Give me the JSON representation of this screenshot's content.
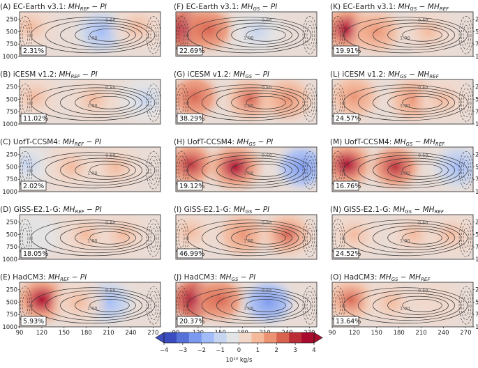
{
  "chart_data": {
    "type": "heatmap",
    "description_units": "10^10 kg/s",
    "panels": [
      {
        "title_prefix": "(A) EC-Earth v3.1: ",
        "title_math": "MH_REF − PI",
        "badge": "2.31%",
        "column": 0,
        "row": 0,
        "blobs": [
          {
            "lon": 105,
            "p": 400,
            "v": 1.2
          },
          {
            "lon": 200,
            "p": 500,
            "v": -1.5
          },
          {
            "lon": 250,
            "p": 400,
            "v": 0.8
          }
        ]
      },
      {
        "title_prefix": "(F) EC-Earth v3.1: ",
        "title_math": "MH_GS − PI",
        "badge": "22.69%",
        "column": 1,
        "row": 0,
        "blobs": [
          {
            "lon": 105,
            "p": 450,
            "v": 4
          },
          {
            "lon": 135,
            "p": 450,
            "v": 2.5
          },
          {
            "lon": 200,
            "p": 500,
            "v": -1.2
          }
        ]
      },
      {
        "title_prefix": "(K) EC-Earth v3.1: ",
        "title_math": "MH_GS − MH_REF",
        "badge": "19.91%",
        "column": 2,
        "row": 0,
        "blobs": [
          {
            "lon": 110,
            "p": 450,
            "v": 3.5
          },
          {
            "lon": 150,
            "p": 500,
            "v": 1.5
          },
          {
            "lon": 220,
            "p": 500,
            "v": 0.8
          }
        ]
      },
      {
        "title_prefix": "(B) iCESM v1.2: ",
        "title_math": "MH_REF − PI",
        "badge": "11.02%",
        "column": 0,
        "row": 1,
        "blobs": [
          {
            "lon": 110,
            "p": 450,
            "v": 1.2
          },
          {
            "lon": 190,
            "p": 500,
            "v": 1.0
          },
          {
            "lon": 260,
            "p": 500,
            "v": -0.8
          }
        ]
      },
      {
        "title_prefix": "(G) iCESM v1.2: ",
        "title_math": "MH_GS − PI",
        "badge": "38.29%",
        "column": 1,
        "row": 1,
        "blobs": [
          {
            "lon": 115,
            "p": 450,
            "v": 2.5
          },
          {
            "lon": 190,
            "p": 500,
            "v": 2.0
          },
          {
            "lon": 240,
            "p": 500,
            "v": 1.5
          }
        ]
      },
      {
        "title_prefix": "(L) iCESM v1.2: ",
        "title_math": "MH_GS − MH_REF",
        "badge": "24.57%",
        "column": 2,
        "row": 1,
        "blobs": [
          {
            "lon": 120,
            "p": 450,
            "v": 1.5
          },
          {
            "lon": 200,
            "p": 500,
            "v": 1.8
          },
          {
            "lon": 240,
            "p": 500,
            "v": 1.0
          }
        ]
      },
      {
        "title_prefix": "(C) UofT-CCSM4: ",
        "title_math": "MH_REF − PI",
        "badge": "2.02%",
        "column": 0,
        "row": 2,
        "blobs": [
          {
            "lon": 100,
            "p": 450,
            "v": -1.0
          },
          {
            "lon": 160,
            "p": 500,
            "v": 0.8
          },
          {
            "lon": 220,
            "p": 500,
            "v": 1.0
          }
        ]
      },
      {
        "title_prefix": "(H) UofT-CCSM4: ",
        "title_math": "MH_GS − PI",
        "badge": "19.12%",
        "column": 1,
        "row": 2,
        "blobs": [
          {
            "lon": 110,
            "p": 450,
            "v": 3.2
          },
          {
            "lon": 170,
            "p": 500,
            "v": 3.5
          },
          {
            "lon": 260,
            "p": 500,
            "v": -2.5
          }
        ]
      },
      {
        "title_prefix": "(M) UofT-CCSM4: ",
        "title_math": "MH_GS − MH_REF",
        "badge": "16.76%",
        "column": 2,
        "row": 2,
        "blobs": [
          {
            "lon": 110,
            "p": 450,
            "v": 3.5
          },
          {
            "lon": 175,
            "p": 500,
            "v": 3.0
          },
          {
            "lon": 260,
            "p": 500,
            "v": -1.5
          }
        ]
      },
      {
        "title_prefix": "(D) GISS-E2.1-G: ",
        "title_math": "MH_REF − PI",
        "badge": "18.05%",
        "column": 0,
        "row": 3,
        "blobs": [
          {
            "lon": 110,
            "p": 500,
            "v": -0.6
          },
          {
            "lon": 180,
            "p": 500,
            "v": 0.8
          },
          {
            "lon": 230,
            "p": 500,
            "v": 0.9
          }
        ]
      },
      {
        "title_prefix": "(I) GISS-E2.1-G: ",
        "title_math": "MH_GS − PI",
        "badge": "46.99%",
        "column": 1,
        "row": 3,
        "blobs": [
          {
            "lon": 110,
            "p": 450,
            "v": 1.0
          },
          {
            "lon": 180,
            "p": 500,
            "v": 1.8
          },
          {
            "lon": 240,
            "p": 500,
            "v": 2.0
          }
        ]
      },
      {
        "title_prefix": "(N) GISS-E2.1-G: ",
        "title_math": "MH_GS − MH_REF",
        "badge": "24.52%",
        "column": 2,
        "row": 3,
        "blobs": [
          {
            "lon": 120,
            "p": 500,
            "v": 0.8
          },
          {
            "lon": 200,
            "p": 500,
            "v": 1.2
          },
          {
            "lon": 250,
            "p": 500,
            "v": 1.0
          }
        ]
      },
      {
        "title_prefix": "(E) HadCM3: ",
        "title_math": "MH_REF − PI",
        "badge": "5.93%",
        "column": 0,
        "row": 4,
        "blobs": [
          {
            "lon": 120,
            "p": 450,
            "v": 3.5
          },
          {
            "lon": 210,
            "p": 500,
            "v": -2.0
          },
          {
            "lon": 170,
            "p": 500,
            "v": 1.0
          }
        ]
      },
      {
        "title_prefix": "(J) HadCM3: ",
        "title_math": "MH_GS − PI",
        "badge": "20.37%",
        "column": 1,
        "row": 4,
        "blobs": [
          {
            "lon": 115,
            "p": 450,
            "v": 4.0
          },
          {
            "lon": 150,
            "p": 450,
            "v": 2.5
          },
          {
            "lon": 215,
            "p": 500,
            "v": -2.5
          }
        ]
      },
      {
        "title_prefix": "(O) HadCM3: ",
        "title_math": "MH_GS − MH_REF",
        "badge": "13.64%",
        "column": 2,
        "row": 4,
        "blobs": [
          {
            "lon": 115,
            "p": 450,
            "v": 2.2
          },
          {
            "lon": 170,
            "p": 500,
            "v": 0.8
          },
          {
            "lon": 230,
            "p": 500,
            "v": 0.6
          }
        ]
      }
    ],
    "x_axis": {
      "ticks": [
        90,
        120,
        150,
        180,
        210,
        240,
        270
      ],
      "range": [
        90,
        280
      ]
    },
    "y_axis": {
      "ticks": [
        250,
        500,
        750,
        1000
      ],
      "range": [
        100,
        1000
      ],
      "inverted": true
    },
    "contour_labels": [
      "0.50",
      "1.00",
      "1.50",
      "0.00"
    ],
    "colorbar": {
      "ticks": [
        -4,
        -3,
        -2,
        -1,
        0,
        1,
        2,
        3,
        4
      ],
      "tick_labels": [
        "−4",
        "−3",
        "−2",
        "−1",
        "0",
        "1",
        "2",
        "3",
        "4"
      ],
      "colors": [
        "#3a4cc0",
        "#5671d8",
        "#7b99ef",
        "#a2bcf9",
        "#c6d5f0",
        "#e3e4e6",
        "#f1d8cb",
        "#f5b99c",
        "#ec9373",
        "#d8634f",
        "#bb2e38",
        "#a80b2b"
      ],
      "label": "10¹⁰ kg/s",
      "extend": "both"
    }
  }
}
